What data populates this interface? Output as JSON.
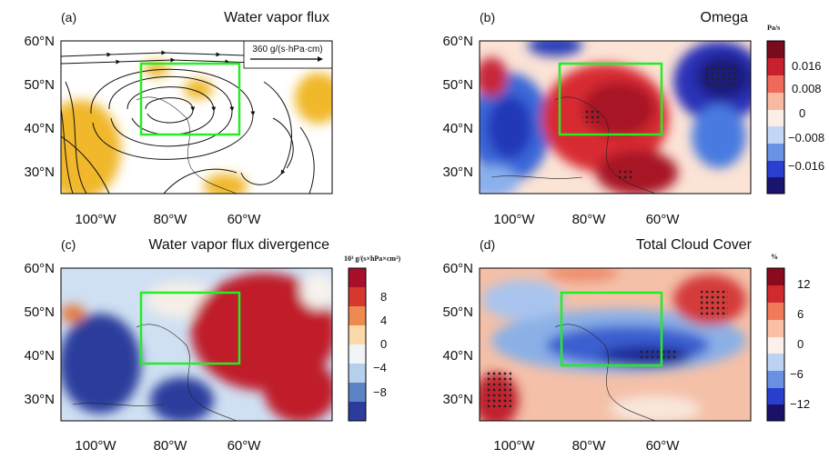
{
  "panels": [
    {
      "label": "(a)",
      "title": "Water vapor flux",
      "reference_vector": "360 g/(s·hPa·cm)"
    },
    {
      "label": "(b)",
      "title": "Omega",
      "colorbar": {
        "unit": "Pa/s",
        "ticks": [
          "0.016",
          "0.008",
          "0",
          "−0.008",
          "−0.016"
        ]
      }
    },
    {
      "label": "(c)",
      "title": "Water vapor flux divergence",
      "colorbar": {
        "unit": "10³ g/(s×hPa×cm²)",
        "ticks": [
          "8",
          "4",
          "0",
          "−4",
          "−8"
        ]
      }
    },
    {
      "label": "(d)",
      "title": "Total Cloud Cover",
      "colorbar": {
        "unit": "%",
        "ticks": [
          "12",
          "6",
          "0",
          "−6",
          "−12"
        ]
      }
    }
  ],
  "lat_labels": [
    "60°N",
    "50°N",
    "40°N",
    "30°N"
  ],
  "lon_labels": [
    "100°W",
    "80°W",
    "60°W"
  ]
}
